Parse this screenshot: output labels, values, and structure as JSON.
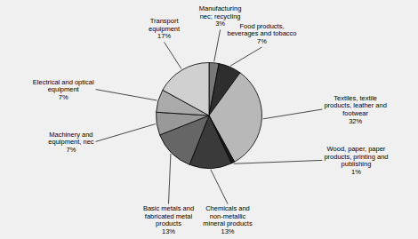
{
  "chart_data": {
    "type": "pie",
    "categories": [
      "Manufacturing\nnec; recycling",
      "Food products,\nbeverages and tobacco",
      "Textiles, textile\nproducts, leather and\nfootwear",
      "Wood, paper, paper\nproducts, printing and\npublishing",
      "Chemicals and\nnon-metallic\nmineral products",
      "Basic metals and\nfabricated metal\nproducts",
      "Machinery and\nequipment, nec",
      "Electrical and optical\nequipment",
      "Transport\nequipment"
    ],
    "values": [
      3,
      7,
      32,
      1,
      13,
      13,
      7,
      7,
      17
    ],
    "value_labels": [
      "3%",
      "7%",
      "32%",
      "1%",
      "13%",
      "13%",
      "7%",
      "7%",
      "17%"
    ],
    "colors": [
      "#787878",
      "#2e2e2e",
      "#b8b8b8",
      "#1a1a1a",
      "#3a3a3a",
      "#666666",
      "#999999",
      "#aaaaaa",
      "#d0d0d0"
    ],
    "data_labels": true
  }
}
